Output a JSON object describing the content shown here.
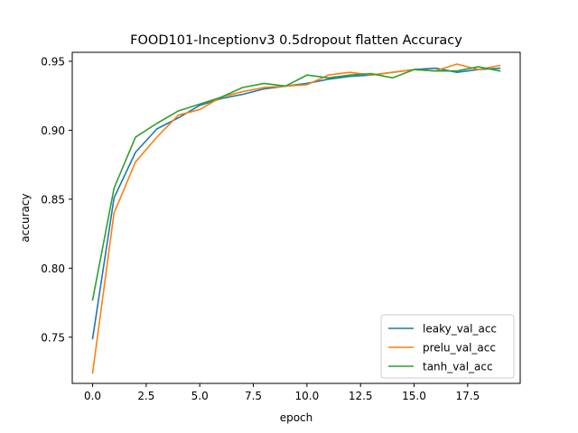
{
  "chart_data": {
    "type": "line",
    "title": "FOOD101-Inceptionv3 0.5dropout flatten Accuracy",
    "xlabel": "epoch",
    "ylabel": "accuracy",
    "xlim": [
      -0.95,
      19.95
    ],
    "ylim": [
      0.7165,
      0.9565
    ],
    "xticks": [
      0,
      2.5,
      5,
      7.5,
      10,
      12.5,
      15,
      17.5
    ],
    "xtick_labels": [
      "0.0",
      "2.5",
      "5.0",
      "7.5",
      "10.0",
      "12.5",
      "15.0",
      "17.5"
    ],
    "yticks": [
      0.75,
      0.8,
      0.85,
      0.9,
      0.95
    ],
    "ytick_labels": [
      "0.75",
      "0.80",
      "0.85",
      "0.90",
      "0.95"
    ],
    "grid": false,
    "legend_position": "lower-right",
    "x": [
      0,
      1,
      2,
      3,
      4,
      5,
      6,
      7,
      8,
      9,
      10,
      11,
      12,
      13,
      14,
      15,
      16,
      17,
      18,
      19
    ],
    "series": [
      {
        "name": "leaky_val_acc",
        "color": "#1f77b4",
        "values": [
          0.749,
          0.851,
          0.884,
          0.901,
          0.909,
          0.918,
          0.923,
          0.926,
          0.93,
          0.932,
          0.934,
          0.937,
          0.939,
          0.94,
          0.942,
          0.944,
          0.945,
          0.942,
          0.944,
          0.945
        ]
      },
      {
        "name": "prelu_val_acc",
        "color": "#ff7f0e",
        "values": [
          0.724,
          0.84,
          0.877,
          0.895,
          0.911,
          0.915,
          0.924,
          0.928,
          0.931,
          0.932,
          0.933,
          0.94,
          0.942,
          0.94,
          0.942,
          0.944,
          0.943,
          0.948,
          0.944,
          0.947
        ]
      },
      {
        "name": "tanh_val_acc",
        "color": "#2ca02c",
        "values": [
          0.777,
          0.858,
          0.895,
          0.905,
          0.914,
          0.919,
          0.924,
          0.931,
          0.934,
          0.932,
          0.94,
          0.938,
          0.94,
          0.941,
          0.938,
          0.944,
          0.943,
          0.943,
          0.946,
          0.943
        ]
      }
    ]
  }
}
